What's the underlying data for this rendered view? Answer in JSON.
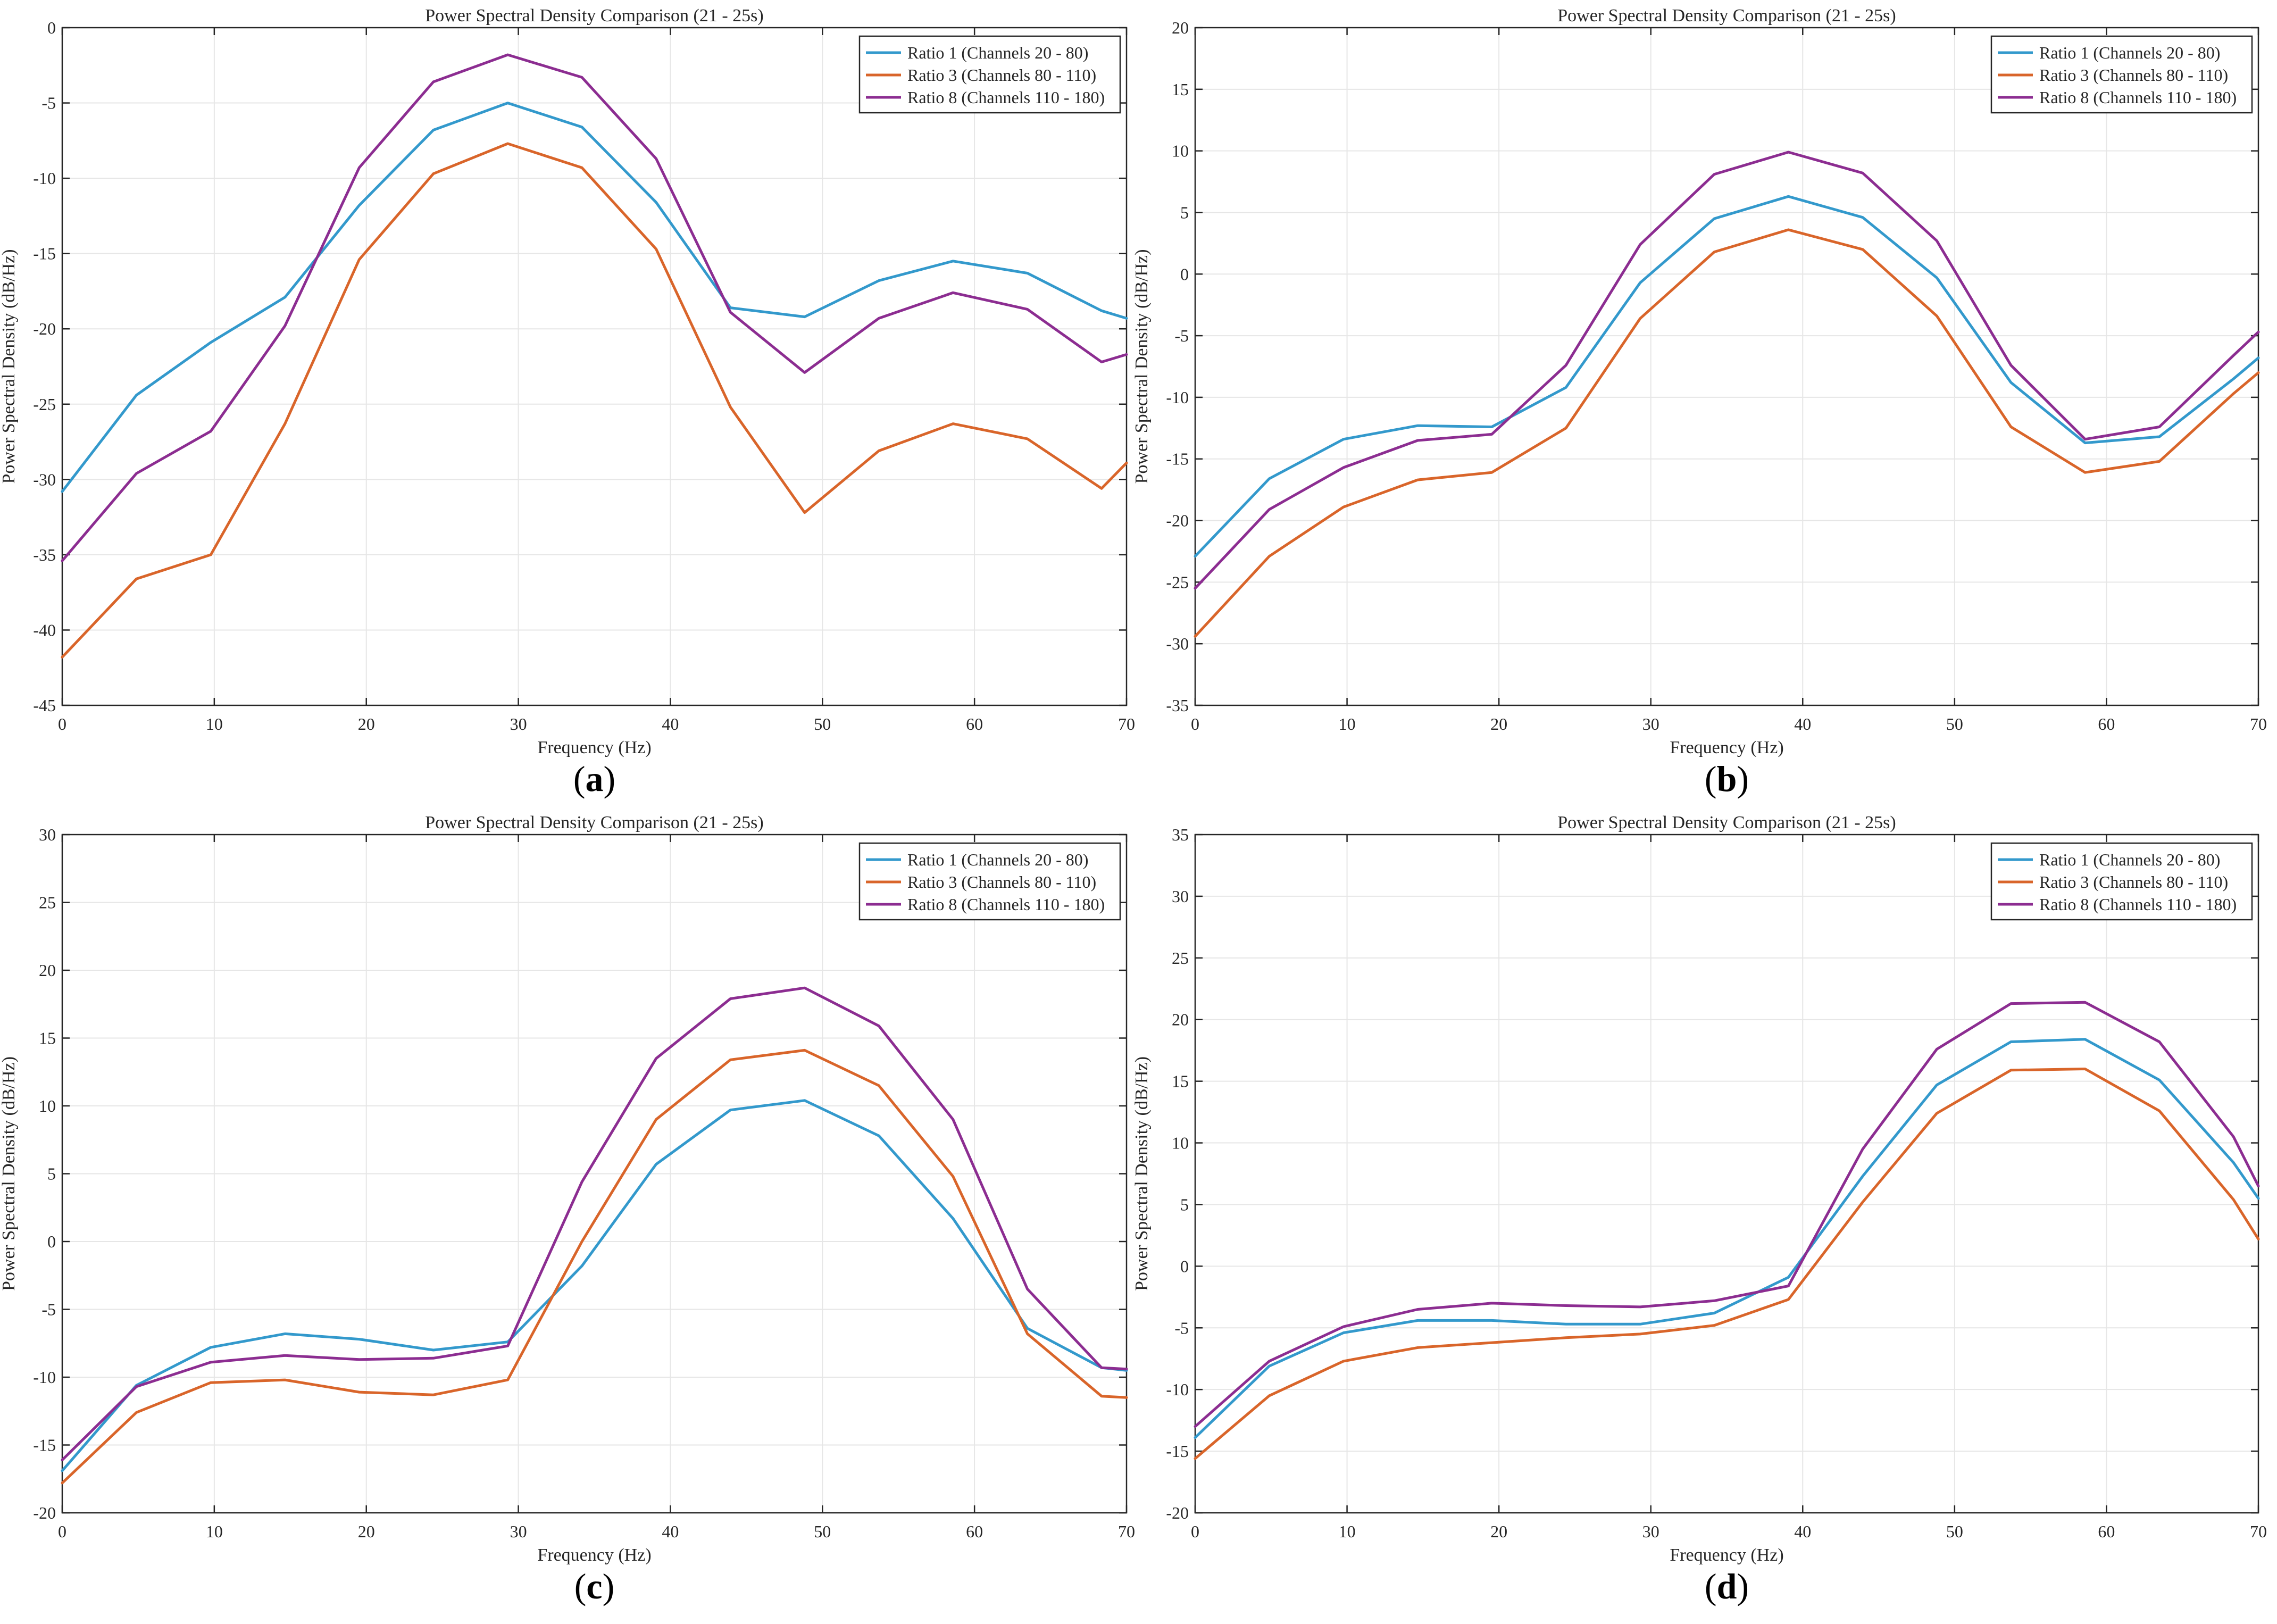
{
  "figure": {
    "panel_labels": [
      "a",
      "b",
      "c",
      "d"
    ]
  },
  "colors": {
    "Ratio 1": "#3399cc",
    "Ratio 3": "#d9652a",
    "Ratio 8": "#8c2d91",
    "grid": "#e6e6e6",
    "axis": "#262626"
  },
  "chart_data": [
    {
      "type": "line",
      "panel": "a",
      "title": "Power Spectral Density Comparison (21 - 25s)",
      "xlabel": "Frequency (Hz)",
      "ylabel": "Power Spectral Density (dB/Hz)",
      "xlim": [
        0,
        70
      ],
      "ylim": [
        -45,
        0
      ],
      "xticks": [
        0,
        10,
        20,
        30,
        40,
        50,
        60,
        70
      ],
      "yticks": [
        -45,
        -40,
        -35,
        -30,
        -25,
        -20,
        -15,
        -10,
        -5,
        0
      ],
      "grid": true,
      "legend": "top-right",
      "x": [
        0,
        4.88,
        9.77,
        14.65,
        19.53,
        24.41,
        29.3,
        34.18,
        39.06,
        43.95,
        48.83,
        53.71,
        58.59,
        63.48,
        68.36,
        70
      ],
      "series": [
        {
          "name": "Ratio 1 (Channels 20 - 80)",
          "color_key": "Ratio 1",
          "values": [
            -30.8,
            -24.4,
            -20.9,
            -17.9,
            -11.8,
            -6.8,
            -5.0,
            -6.6,
            -11.6,
            -18.6,
            -19.2,
            -16.8,
            -15.5,
            -16.3,
            -18.8,
            -19.3
          ]
        },
        {
          "name": "Ratio 3 (Channels 80 - 110)",
          "color_key": "Ratio 3",
          "values": [
            -41.8,
            -36.6,
            -35.0,
            -26.3,
            -15.4,
            -9.7,
            -7.7,
            -9.3,
            -14.7,
            -25.2,
            -32.2,
            -28.1,
            -26.3,
            -27.3,
            -30.6,
            -28.9
          ]
        },
        {
          "name": "Ratio 8 (Channels 110 - 180)",
          "color_key": "Ratio 8",
          "values": [
            -35.4,
            -29.6,
            -26.8,
            -19.8,
            -9.3,
            -3.6,
            -1.8,
            -3.3,
            -8.7,
            -18.9,
            -22.9,
            -19.3,
            -17.6,
            -18.7,
            -22.2,
            -21.7
          ]
        }
      ]
    },
    {
      "type": "line",
      "panel": "b",
      "title": "Power Spectral Density Comparison (21 - 25s)",
      "xlabel": "Frequency (Hz)",
      "ylabel": "Power Spectral Density (dB/Hz)",
      "xlim": [
        0,
        70
      ],
      "ylim": [
        -35,
        20
      ],
      "xticks": [
        0,
        10,
        20,
        30,
        40,
        50,
        60,
        70
      ],
      "yticks": [
        -35,
        -30,
        -25,
        -20,
        -15,
        -10,
        -5,
        0,
        5,
        10,
        15,
        20
      ],
      "grid": true,
      "legend": "top-right",
      "x": [
        0,
        4.88,
        9.77,
        14.65,
        19.53,
        24.41,
        29.3,
        34.18,
        39.06,
        43.95,
        48.83,
        53.71,
        58.59,
        63.48,
        68.36,
        70
      ],
      "series": [
        {
          "name": "Ratio 1 (Channels 20 - 80)",
          "color_key": "Ratio 1",
          "values": [
            -22.9,
            -16.6,
            -13.4,
            -12.3,
            -12.4,
            -9.2,
            -0.7,
            4.5,
            6.3,
            4.6,
            -0.3,
            -8.8,
            -13.7,
            -13.2,
            -8.5,
            -6.8
          ]
        },
        {
          "name": "Ratio 3 (Channels 80 - 110)",
          "color_key": "Ratio 3",
          "values": [
            -29.4,
            -22.9,
            -18.9,
            -16.7,
            -16.1,
            -12.5,
            -3.6,
            1.8,
            3.6,
            2.0,
            -3.4,
            -12.4,
            -16.1,
            -15.2,
            -9.7,
            -8.0
          ]
        },
        {
          "name": "Ratio 8 (Channels 110 - 180)",
          "color_key": "Ratio 8",
          "values": [
            -25.5,
            -19.1,
            -15.7,
            -13.5,
            -13.0,
            -7.4,
            2.4,
            8.1,
            9.9,
            8.2,
            2.7,
            -7.4,
            -13.4,
            -12.4,
            -6.6,
            -4.7
          ]
        }
      ]
    },
    {
      "type": "line",
      "panel": "c",
      "title": "Power Spectral Density Comparison (21 - 25s)",
      "xlabel": "Frequency (Hz)",
      "ylabel": "Power Spectral Density (dB/Hz)",
      "xlim": [
        0,
        70
      ],
      "ylim": [
        -20,
        30
      ],
      "xticks": [
        0,
        10,
        20,
        30,
        40,
        50,
        60,
        70
      ],
      "yticks": [
        -20,
        -15,
        -10,
        -5,
        0,
        5,
        10,
        15,
        20,
        25,
        30
      ],
      "grid": true,
      "legend": "top-right",
      "x": [
        0,
        4.88,
        9.77,
        14.65,
        19.53,
        24.41,
        29.3,
        34.18,
        39.06,
        43.95,
        48.83,
        53.71,
        58.59,
        63.48,
        68.36,
        70
      ],
      "series": [
        {
          "name": "Ratio 1 (Channels 20 - 80)",
          "color_key": "Ratio 1",
          "values": [
            -16.9,
            -10.6,
            -7.8,
            -6.8,
            -7.2,
            -8.0,
            -7.4,
            -1.8,
            5.7,
            9.7,
            10.4,
            7.8,
            1.7,
            -6.4,
            -9.3,
            -9.5
          ]
        },
        {
          "name": "Ratio 3 (Channels 80 - 110)",
          "color_key": "Ratio 3",
          "values": [
            -17.8,
            -12.6,
            -10.4,
            -10.2,
            -11.1,
            -11.3,
            -10.2,
            0.0,
            9.0,
            13.4,
            14.1,
            11.5,
            4.8,
            -6.8,
            -11.4,
            -11.5
          ]
        },
        {
          "name": "Ratio 8 (Channels 110 - 180)",
          "color_key": "Ratio 8",
          "values": [
            -16.1,
            -10.7,
            -8.9,
            -8.4,
            -8.7,
            -8.6,
            -7.7,
            4.4,
            13.5,
            17.9,
            18.7,
            15.9,
            9.0,
            -3.5,
            -9.3,
            -9.4
          ]
        }
      ]
    },
    {
      "type": "line",
      "panel": "d",
      "title": "Power Spectral Density Comparison (21 - 25s)",
      "xlabel": "Frequency (Hz)",
      "ylabel": "Power Spectral Density (dB/Hz)",
      "xlim": [
        0,
        70
      ],
      "ylim": [
        -20,
        35
      ],
      "xticks": [
        0,
        10,
        20,
        30,
        40,
        50,
        60,
        70
      ],
      "yticks": [
        -20,
        -15,
        -10,
        -5,
        0,
        5,
        10,
        15,
        20,
        25,
        30,
        35
      ],
      "grid": true,
      "legend": "top-right",
      "x": [
        0,
        4.88,
        9.77,
        14.65,
        19.53,
        24.41,
        29.3,
        34.18,
        39.06,
        43.95,
        48.83,
        53.71,
        58.59,
        63.48,
        68.36,
        70
      ],
      "series": [
        {
          "name": "Ratio 1 (Channels 20 - 80)",
          "color_key": "Ratio 1",
          "values": [
            -13.9,
            -8.1,
            -5.4,
            -4.4,
            -4.4,
            -4.7,
            -4.7,
            -3.8,
            -0.9,
            7.3,
            14.7,
            18.2,
            18.4,
            15.1,
            8.4,
            5.5
          ]
        },
        {
          "name": "Ratio 3 (Channels 80 - 110)",
          "color_key": "Ratio 3",
          "values": [
            -15.6,
            -10.5,
            -7.7,
            -6.6,
            -6.2,
            -5.8,
            -5.5,
            -4.8,
            -2.7,
            5.2,
            12.4,
            15.9,
            16.0,
            12.6,
            5.4,
            2.2
          ]
        },
        {
          "name": "Ratio 8 (Channels 110 - 180)",
          "color_key": "Ratio 8",
          "values": [
            -13.0,
            -7.7,
            -4.9,
            -3.5,
            -3.0,
            -3.2,
            -3.3,
            -2.8,
            -1.6,
            9.5,
            17.6,
            21.3,
            21.4,
            18.2,
            10.5,
            6.5
          ]
        }
      ]
    }
  ]
}
